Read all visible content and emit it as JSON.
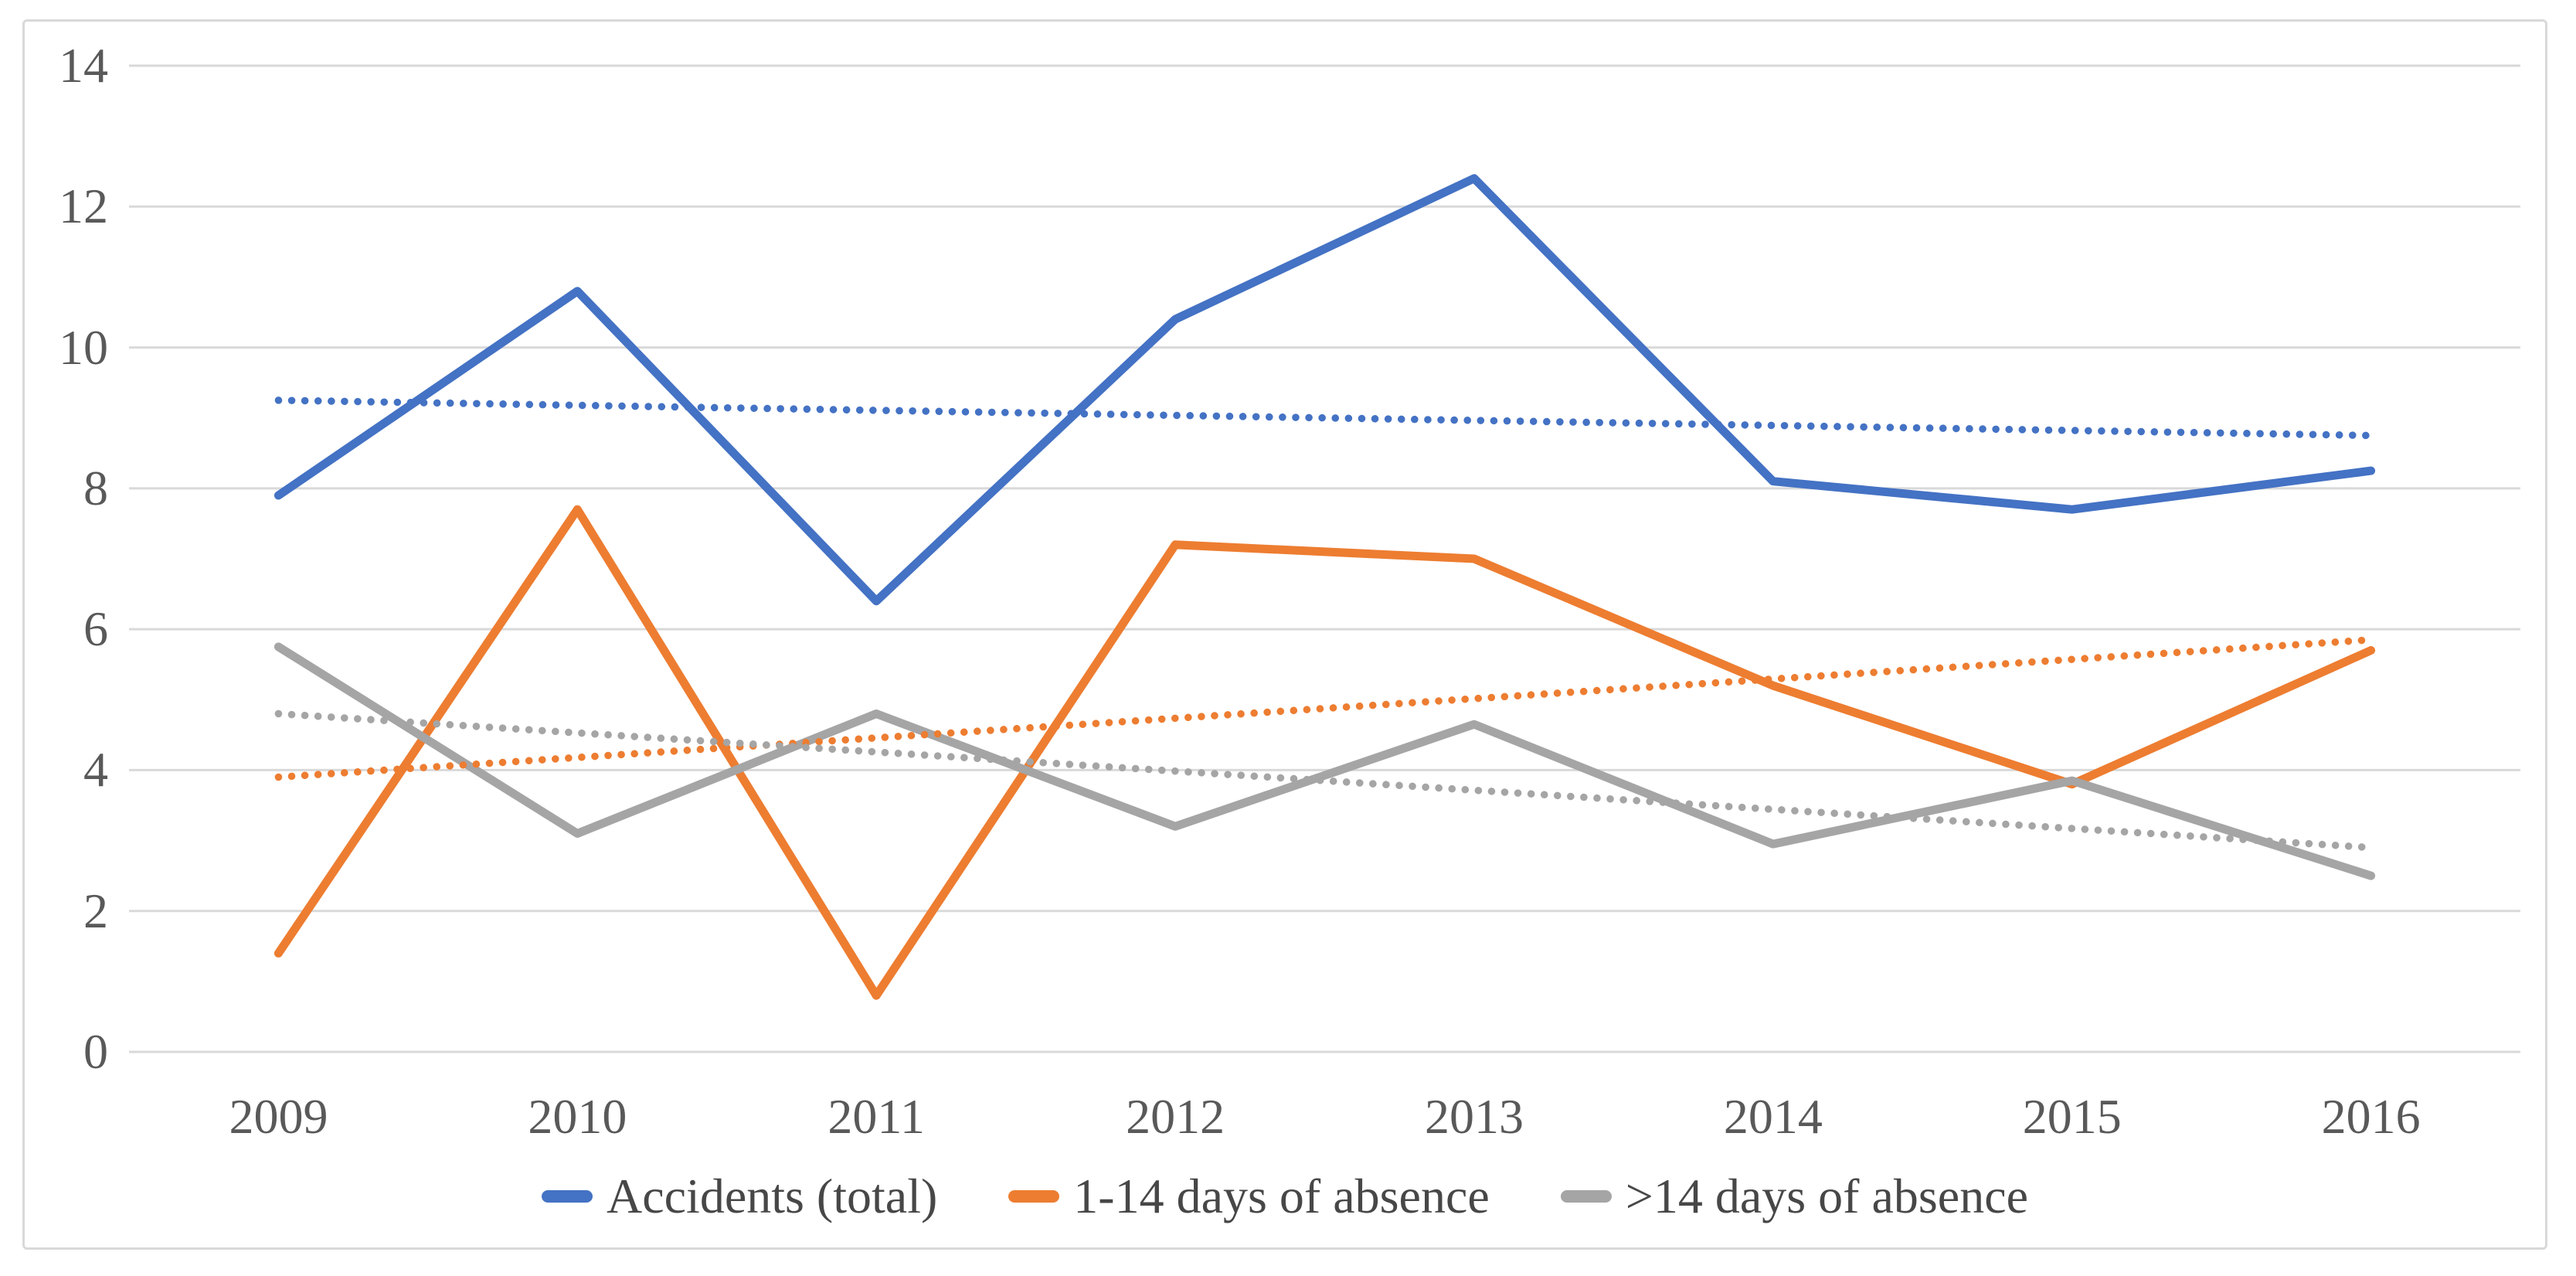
{
  "chart_data": {
    "type": "line",
    "title": "",
    "categories": [
      "2009",
      "2010",
      "2011",
      "2012",
      "2013",
      "2014",
      "2015",
      "2016"
    ],
    "series": [
      {
        "name": "Accidents (total)",
        "color": "#4472C4",
        "line_style": "solid",
        "values": [
          7.9,
          10.8,
          6.4,
          10.4,
          12.4,
          8.1,
          7.7,
          8.25
        ],
        "trendline": {
          "style": "dotted",
          "start": 9.25,
          "end": 8.75
        }
      },
      {
        "name": "1-14 days of absence",
        "color": "#ED7D31",
        "line_style": "solid",
        "values": [
          1.4,
          7.7,
          0.8,
          7.2,
          7.0,
          5.2,
          3.8,
          5.7
        ],
        "trendline": {
          "style": "dotted",
          "start": 3.9,
          "end": 5.85
        }
      },
      {
        "name": ">14 days of absence",
        "color": "#A5A5A5",
        "line_style": "solid",
        "values": [
          5.75,
          3.1,
          4.8,
          3.2,
          4.65,
          2.95,
          3.85,
          2.5
        ],
        "trendline": {
          "style": "dotted",
          "start": 4.8,
          "end": 2.9
        }
      }
    ],
    "y_axis": {
      "min": 0,
      "max": 14,
      "tick_step": 2,
      "tick_labels": [
        "0",
        "2",
        "4",
        "6",
        "8",
        "10",
        "12",
        "14"
      ]
    },
    "x_axis": {
      "labels": [
        "2009",
        "2010",
        "2011",
        "2012",
        "2013",
        "2014",
        "2015",
        "2016"
      ]
    },
    "grid": true,
    "legend_position": "bottom",
    "colors": {
      "gridline": "#D9D9D9",
      "figure_border": "#D9D9D9",
      "tick_label": "#595959",
      "legend_label": "#474747",
      "background": "#FFFFFF"
    }
  }
}
